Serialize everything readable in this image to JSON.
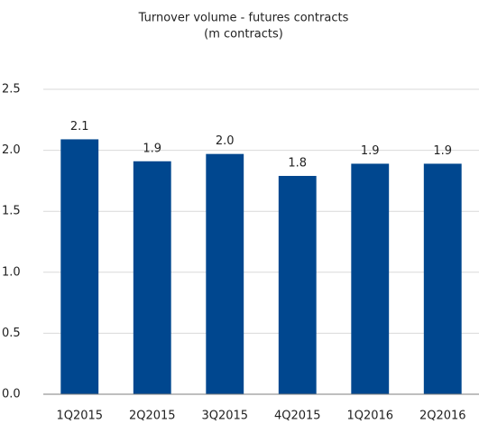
{
  "chart_data": {
    "type": "bar",
    "title": "Turnover volume - futures contracts",
    "subtitle": "(m contracts)",
    "categories": [
      "1Q2015",
      "2Q2015",
      "3Q2015",
      "4Q2015",
      "1Q2016",
      "2Q2016"
    ],
    "values": [
      2.09,
      1.91,
      1.97,
      1.79,
      1.89,
      1.89
    ],
    "value_labels": [
      "2.1",
      "1.9",
      "2.0",
      "1.8",
      "1.9",
      "1.9"
    ],
    "color": "#00478f",
    "ylim": [
      0,
      2.5
    ],
    "yticks": [
      {
        "value": 0,
        "label": "0.0"
      },
      0.5,
      {
        "value": 1,
        "label": "1.0"
      },
      1.5,
      {
        "value": 2,
        "label": "2.0"
      },
      2.5
    ],
    "grid": true
  }
}
